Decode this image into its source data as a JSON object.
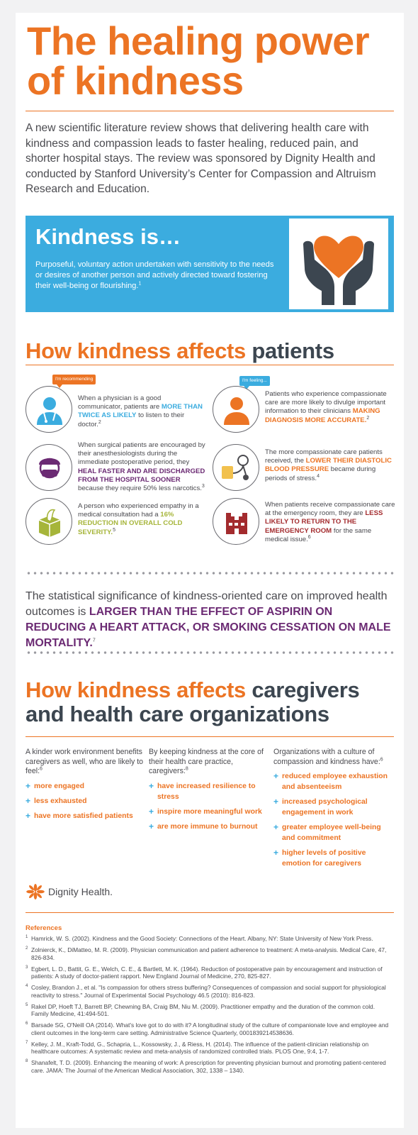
{
  "title_line1": "The healing power",
  "title_line2": "of kindness",
  "intro": "A new scientific literature review shows that delivering health care with kindness and compassion leads to faster healing, reduced pain, and shorter hospital stays. The review was sponsored by Dignity Health and conducted by Stanford University’s Center for Compassion and Altruism Research and Education.",
  "kindness": {
    "title": "Kindness is…",
    "description": "Purposeful, voluntary action undertaken with sensitivity to the needs or desires of another person and actively directed toward fostering their well-being or flourishing.",
    "ref": "1",
    "icon": "hands-heart-icon"
  },
  "patients": {
    "heading_orange": "How kindness affects",
    "heading_gray": "patients",
    "items": [
      {
        "icon": "doctor-icon",
        "bubble": "I'm recommending",
        "pre": "When a physician is a good communicator, patients are ",
        "hl": "MORE THAN TWICE AS LIKELY",
        "post": " to listen to their doctor.",
        "ref": "2"
      },
      {
        "icon": "patient-icon",
        "bubble": "I'm feeling...",
        "pre": "Patients who experience compassionate care are more likely to divulge important information to their clinicians ",
        "hl": "MAKING DIAGNOSIS MORE ACCURATE.",
        "post": "",
        "ref": "2"
      },
      {
        "icon": "surgeon-icon",
        "pre": "When surgical patients are encouraged by their anesthesiologists during the immediate postoperative period, they ",
        "hl": "HEAL FASTER AND ARE DISCHARGED FROM THE HOSPITAL SOONER",
        "post": " because they require 50% less narcotics.",
        "ref": "3"
      },
      {
        "icon": "blood-pressure-icon",
        "pre": "The more compassionate care patients received, the ",
        "hl": "LOWER THEIR DIASTOLIC BLOOD PRESSURE",
        "post": " became during periods of stress.",
        "ref": "4"
      },
      {
        "icon": "tissue-box-icon",
        "pre": "A person who experienced empathy in a medical consultation had a ",
        "hl": "16% REDUCTION IN OVERALL COLD SEVERITY.",
        "post": "",
        "ref": "5"
      },
      {
        "icon": "hospital-icon",
        "pre": "When patients receive compassionate care at the emergency room, they are ",
        "hl": "LESS LIKELY TO RETURN TO THE EMERGENCY ROOM",
        "post": " for the same medical issue.",
        "ref": "6"
      }
    ]
  },
  "stat": {
    "pre": "The statistical significance of kindness-oriented care on improved health outcomes is ",
    "hl": "LARGER THAN THE EFFECT OF ASPIRIN ON REDUCING A HEART ATTACK, OR SMOKING CESSATION ON MALE MORTALITY.",
    "ref": "7"
  },
  "caregivers": {
    "heading_orange": "How kindness affects",
    "heading_gray_1": "caregivers",
    "heading_gray_2": "and health care organizations",
    "columns": [
      {
        "intro": "A kinder work environment benefits caregivers as well, who are likely to feel:",
        "ref": "6",
        "items": [
          "more engaged",
          "less exhausted",
          "have more satisfied patients"
        ]
      },
      {
        "intro": "By keeping kindness at the core of their health care practice, caregivers:",
        "ref": "8",
        "items": [
          "have increased resilience to stress",
          "inspire more meaningful work",
          "are more immune to burnout"
        ]
      },
      {
        "intro": "Organizations with a culture of compassion and kindness have:",
        "ref": "6",
        "items": [
          "reduced employee exhaustion and absenteeism",
          "increased psychological engagement in work",
          "greater employee well-being and commitment",
          "higher levels of positive emotion for caregivers"
        ]
      }
    ]
  },
  "logo": {
    "text": "Dignity Health.",
    "icon": "dignity-health-logo-icon"
  },
  "references": {
    "title": "References",
    "items": [
      {
        "n": "1",
        "text": "Hamrick, W. S. (2002). Kindness and the Good Society: Connections of the Heart. Albany, NY: State University of New York Press."
      },
      {
        "n": "2",
        "text": "Zolnierck, K., DiMatteo, M. R. (2009). Physician communication and patient adherence to treatment: A meta-analysis. Medical Care, 47, 826-834."
      },
      {
        "n": "3",
        "text": "Egbert, L. D., Battit, G. E., Welch, C. E., & Bartlett, M. K. (1964). Reduction of postoperative pain by encouragement and instruction of patients: A study of doctor-patient rapport. New England Journal of Medicine, 270, 825-827."
      },
      {
        "n": "4",
        "text": "Cosley, Brandon J., et al. \"Is compassion for others stress buffering? Consequences of compassion and social support for physiological reactivity to stress.\" Journal of Experimental Social Psychology 46.5 (2010): 816-823."
      },
      {
        "n": "5",
        "text": "Rakel DP, Hoeft TJ, Barrett BP, Chewning BA, Craig BM, Niu M. (2009). Practitioner empathy and the duration of the common cold. Family Medicine, 41:494-501."
      },
      {
        "n": "6",
        "text": "Barsade SG, O'Neill OA (2014). What's love got to do with it? A longitudinal study of the culture of companionate love and employee and client outcomes in the long-term care setting. Administrative Science Quarterly, 0001839214538636."
      },
      {
        "n": "7",
        "text": "Kelley, J. M., Kraft-Todd, G., Schapria, L., Kossowsky, J., & Riess, H. (2014). The influence of the patient-clinician relationship on healthcare outcomes: A systematic review and meta-analysis of randomized controlled trials. PLOS One, 9:4, 1-7."
      },
      {
        "n": "8",
        "text": "Shanafelt, T. D. (2009). Enhancing the meaning of work: A prescription for preventing physician burnout and promoting patient-centered care. JAMA: The Journal of the American Medical Association, 302, 1338 – 1340."
      }
    ]
  },
  "colors": {
    "orange": "#ec7424",
    "blue": "#3bacdf",
    "purple": "#6b2a73",
    "green": "#a6b53a",
    "red": "#a32b2e",
    "gray": "#3c4650"
  }
}
